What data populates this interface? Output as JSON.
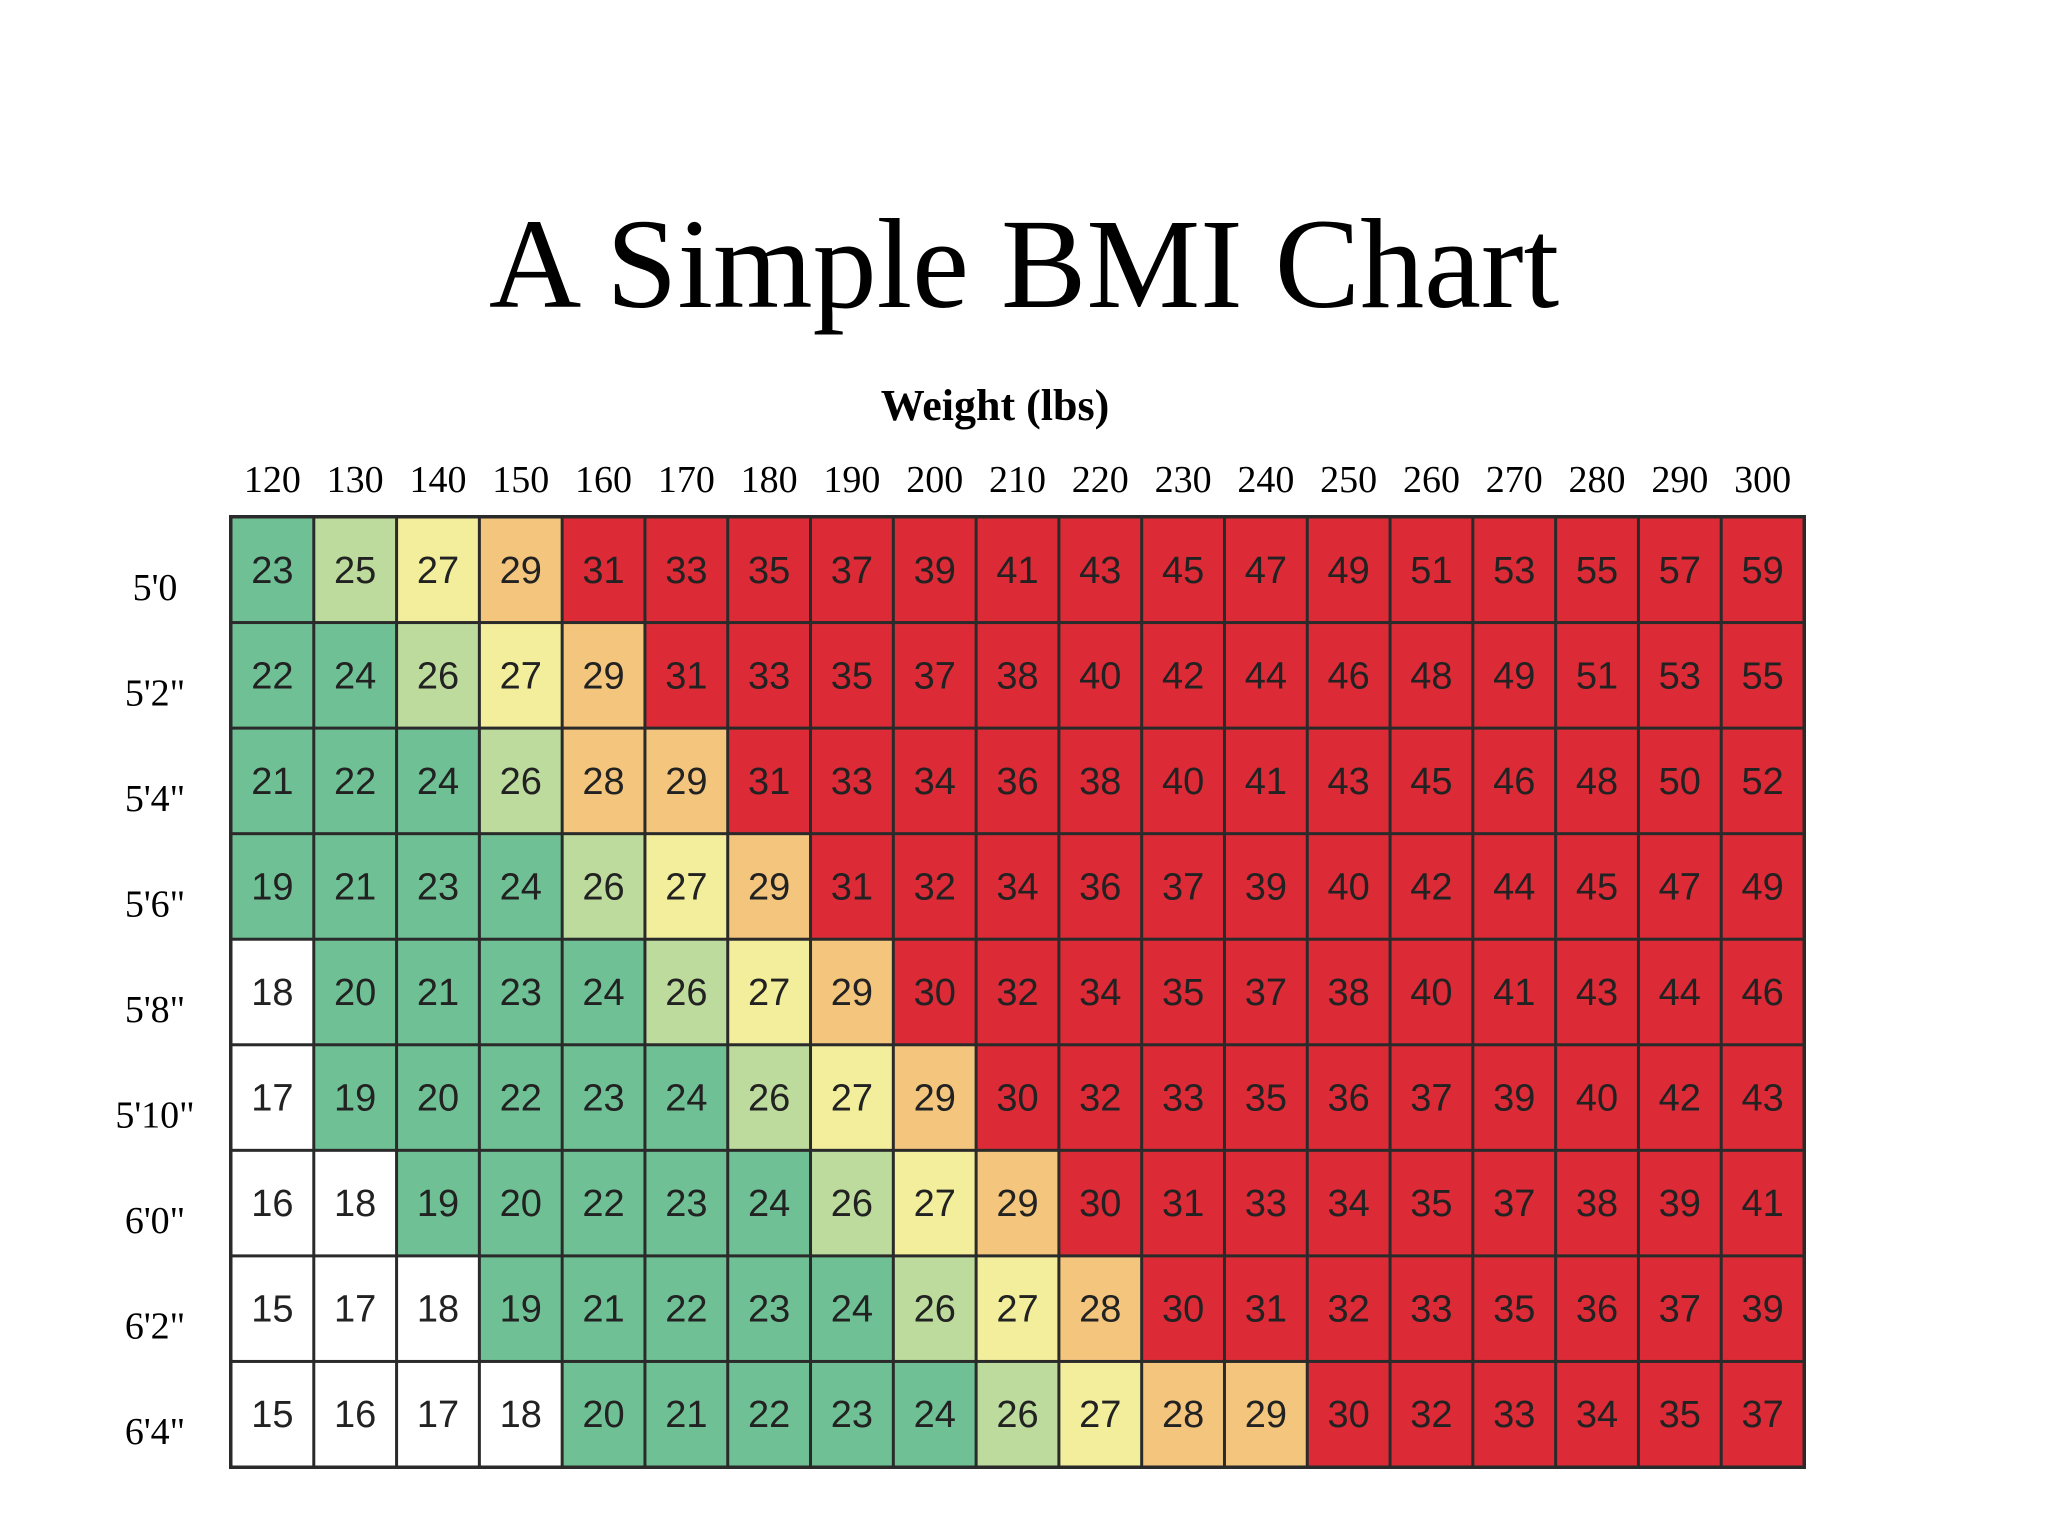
{
  "chart_data": {
    "type": "heatmap",
    "title": "A Simple BMI Chart",
    "xlabel": "Weight (lbs)",
    "ylabel": "",
    "x_labels": [
      "120",
      "130",
      "140",
      "150",
      "160",
      "170",
      "180",
      "190",
      "200",
      "210",
      "220",
      "230",
      "240",
      "250",
      "260",
      "270",
      "280",
      "290",
      "300"
    ],
    "y_labels": [
      "5'0",
      "5'2\"",
      "5'4\"",
      "5'6\"",
      "5'8\"",
      "5'10\"",
      "6'0\"",
      "6'2\"",
      "6'4\""
    ],
    "values": [
      [
        23,
        25,
        27,
        29,
        31,
        33,
        35,
        37,
        39,
        41,
        43,
        45,
        47,
        49,
        51,
        53,
        55,
        57,
        59
      ],
      [
        22,
        24,
        26,
        27,
        29,
        31,
        33,
        35,
        37,
        38,
        40,
        42,
        44,
        46,
        48,
        49,
        51,
        53,
        55
      ],
      [
        21,
        22,
        24,
        26,
        28,
        29,
        31,
        33,
        34,
        36,
        38,
        40,
        41,
        43,
        45,
        46,
        48,
        50,
        52
      ],
      [
        19,
        21,
        23,
        24,
        26,
        27,
        29,
        31,
        32,
        34,
        36,
        37,
        39,
        40,
        42,
        44,
        45,
        47,
        49
      ],
      [
        18,
        20,
        21,
        23,
        24,
        26,
        27,
        29,
        30,
        32,
        34,
        35,
        37,
        38,
        40,
        41,
        43,
        44,
        46
      ],
      [
        17,
        19,
        20,
        22,
        23,
        24,
        26,
        27,
        29,
        30,
        32,
        33,
        35,
        36,
        37,
        39,
        40,
        42,
        43
      ],
      [
        16,
        18,
        19,
        20,
        22,
        23,
        24,
        26,
        27,
        29,
        30,
        31,
        33,
        34,
        35,
        37,
        38,
        39,
        41
      ],
      [
        15,
        17,
        18,
        19,
        21,
        22,
        23,
        24,
        26,
        27,
        28,
        30,
        31,
        32,
        33,
        35,
        36,
        37,
        39
      ],
      [
        15,
        16,
        17,
        18,
        20,
        21,
        22,
        23,
        24,
        26,
        27,
        28,
        29,
        30,
        32,
        33,
        34,
        35,
        37
      ]
    ],
    "color_scale": [
      {
        "max": 18,
        "color": "#ffffff"
      },
      {
        "max": 24,
        "color": "#6fc195"
      },
      {
        "max": 26,
        "color": "#bcdb9c"
      },
      {
        "max": 27,
        "color": "#f2ee9c"
      },
      {
        "max": 29,
        "color": "#f3c57d"
      },
      {
        "max": 999,
        "color": "#dc2a36"
      }
    ],
    "legend": false,
    "grid": true
  }
}
